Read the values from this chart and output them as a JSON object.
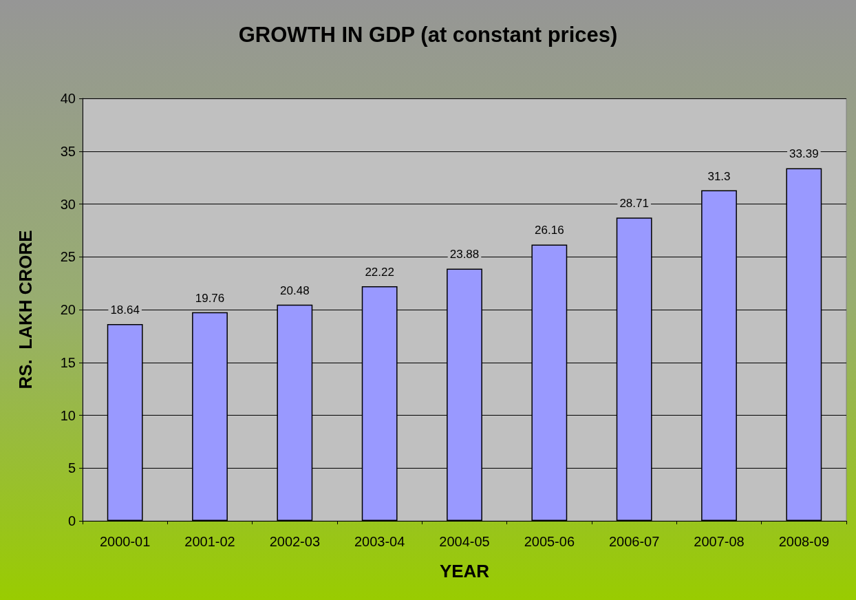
{
  "chart_data": {
    "type": "bar",
    "title": "GROWTH IN GDP (at constant prices)",
    "xlabel": "YEAR",
    "ylabel": "RS.  LAKH CRORE",
    "categories": [
      "2000-01",
      "2001-02",
      "2002-03",
      "2003-04",
      "2004-05",
      "2005-06",
      "2006-07",
      "2007-08",
      "2008-09"
    ],
    "values": [
      18.64,
      19.76,
      20.48,
      22.22,
      23.88,
      26.16,
      28.71,
      31.3,
      33.39
    ],
    "color": "#9999ff",
    "ylim": [
      0,
      40
    ],
    "yticks": [
      0,
      5,
      10,
      15,
      20,
      25,
      30,
      35,
      40
    ],
    "grid": "y",
    "data_labels": true
  }
}
